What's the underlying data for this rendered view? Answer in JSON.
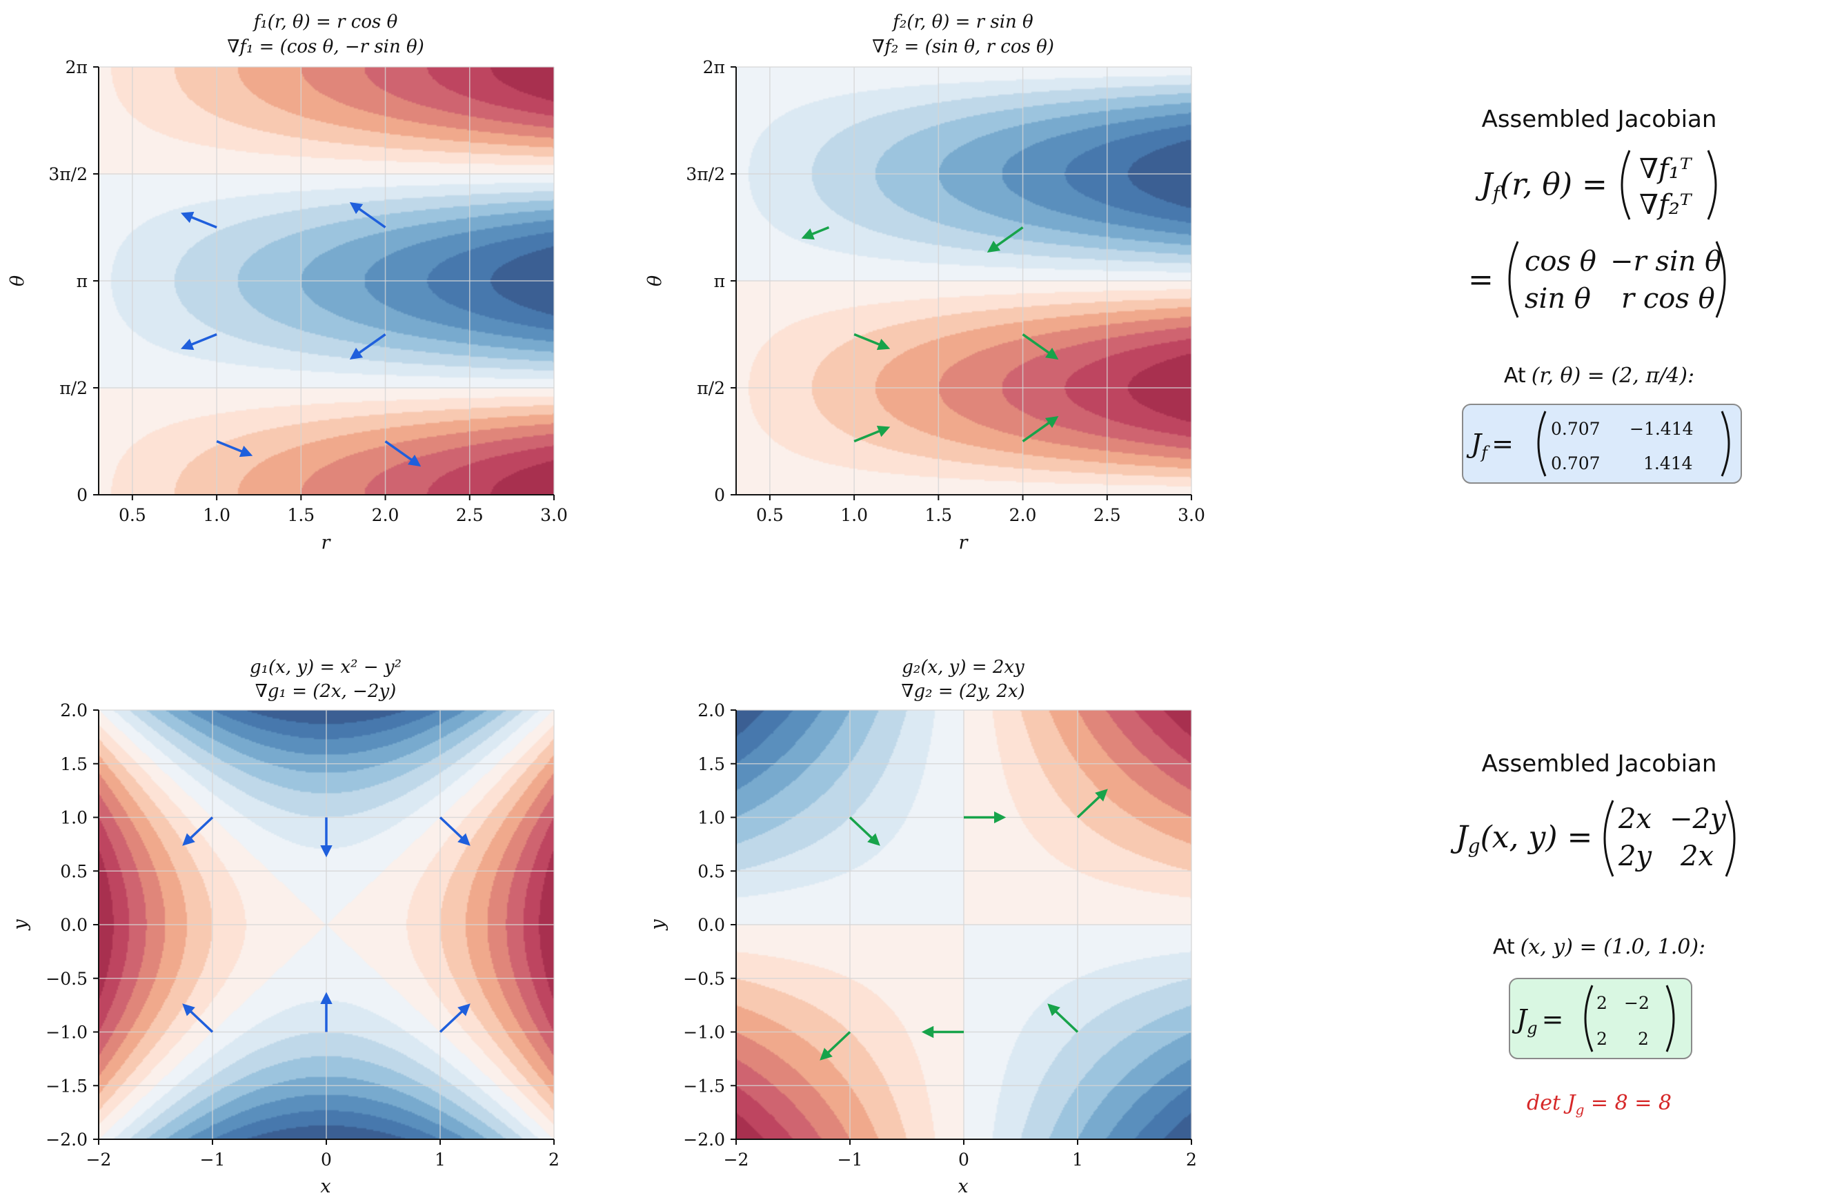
{
  "colors": {
    "positive_ramp": [
      "#fbf0eb",
      "#fde2d5",
      "#f8c9b1",
      "#f0a98c",
      "#e0867a",
      "#cf6470",
      "#be4560",
      "#a8304f"
    ],
    "negative_ramp": [
      "#eef3f8",
      "#dbe9f3",
      "#bfd8e9",
      "#9cc4de",
      "#78aace",
      "#5a8fbd",
      "#4778ad",
      "#3b5f93"
    ],
    "arrow_blue": "#1f5fdc",
    "arrow_green": "#17a34a",
    "grid": "#d5d5d5",
    "box_blue_fill": "#dbeafb",
    "box_green_fill": "#d9f7e2",
    "box_stroke": "#8a8a8a",
    "det_red": "#d62728"
  },
  "chart_data": [
    {
      "id": "f1",
      "type": "contour",
      "function": "r*cos(theta)",
      "title_line1": "f₁(r, θ) = r cos θ",
      "title_line2": "∇f₁ = (cos θ, −r sin θ)",
      "xlabel": "r",
      "ylabel": "θ",
      "xlim": [
        0.3,
        3.0
      ],
      "ylim": [
        0,
        6.2832
      ],
      "x_ticks": [
        0.5,
        1.0,
        1.5,
        2.0,
        2.5,
        3.0
      ],
      "x_tick_labels": [
        "0.5",
        "1.0",
        "1.5",
        "2.0",
        "2.5",
        "3.0"
      ],
      "y_ticks": [
        0,
        1.5708,
        3.1416,
        4.7124,
        6.2832
      ],
      "y_tick_labels": [
        "0",
        "π/2",
        "π",
        "3π/2",
        "2π"
      ],
      "levels": [
        -3,
        -2.625,
        -2.25,
        -1.875,
        -1.5,
        -1.125,
        -0.75,
        -0.375,
        0,
        0.375,
        0.75,
        1.125,
        1.5,
        1.875,
        2.25,
        2.625,
        3
      ],
      "arrow_color": "blue",
      "arrows": [
        {
          "x": 1.0,
          "y": 0.785,
          "dx": 0.2,
          "dy": -0.2
        },
        {
          "x": 2.0,
          "y": 0.785,
          "dx": 0.2,
          "dy": -0.35
        },
        {
          "x": 1.0,
          "y": 2.356,
          "dx": -0.2,
          "dy": -0.2
        },
        {
          "x": 2.0,
          "y": 2.356,
          "dx": -0.2,
          "dy": -0.35
        },
        {
          "x": 1.0,
          "y": 3.927,
          "dx": -0.2,
          "dy": 0.2
        },
        {
          "x": 2.0,
          "y": 3.927,
          "dx": -0.2,
          "dy": 0.35
        }
      ]
    },
    {
      "id": "f2",
      "type": "contour",
      "function": "r*sin(theta)",
      "title_line1": "f₂(r, θ) = r sin θ",
      "title_line2": "∇f₂ = (sin θ, r cos θ)",
      "xlabel": "r",
      "ylabel": "θ",
      "xlim": [
        0.3,
        3.0
      ],
      "ylim": [
        0,
        6.2832
      ],
      "x_ticks": [
        0.5,
        1.0,
        1.5,
        2.0,
        2.5,
        3.0
      ],
      "x_tick_labels": [
        "0.5",
        "1.0",
        "1.5",
        "2.0",
        "2.5",
        "3.0"
      ],
      "y_ticks": [
        0,
        1.5708,
        3.1416,
        4.7124,
        6.2832
      ],
      "y_tick_labels": [
        "0",
        "π/2",
        "π",
        "3π/2",
        "2π"
      ],
      "levels": [
        -3,
        -2.625,
        -2.25,
        -1.875,
        -1.5,
        -1.125,
        -0.75,
        -0.375,
        0,
        0.375,
        0.75,
        1.125,
        1.5,
        1.875,
        2.25,
        2.625,
        3
      ],
      "arrow_color": "green",
      "arrows": [
        {
          "x": 1.0,
          "y": 0.785,
          "dx": 0.2,
          "dy": 0.2
        },
        {
          "x": 2.0,
          "y": 0.785,
          "dx": 0.2,
          "dy": 0.35
        },
        {
          "x": 1.0,
          "y": 2.356,
          "dx": 0.2,
          "dy": -0.2
        },
        {
          "x": 2.0,
          "y": 2.356,
          "dx": 0.2,
          "dy": -0.35
        },
        {
          "x": 0.85,
          "y": 3.927,
          "dx": -0.15,
          "dy": -0.15
        },
        {
          "x": 2.0,
          "y": 3.927,
          "dx": -0.2,
          "dy": -0.35
        }
      ]
    },
    {
      "id": "g1",
      "type": "contour",
      "function": "x*x - y*y",
      "title_line1": "g₁(x, y) = x² − y²",
      "title_line2": "∇g₁ = (2x, −2y)",
      "xlabel": "x",
      "ylabel": "y",
      "xlim": [
        -2,
        2
      ],
      "ylim": [
        -2,
        2
      ],
      "x_ticks": [
        -2,
        -1,
        0,
        1,
        2
      ],
      "x_tick_labels": [
        "−2",
        "−1",
        "0",
        "1",
        "2"
      ],
      "y_ticks": [
        -2,
        -1.5,
        -1,
        -0.5,
        0,
        0.5,
        1,
        1.5,
        2
      ],
      "y_tick_labels": [
        "−2.0",
        "−1.5",
        "−1.0",
        "−0.5",
        "0.0",
        "0.5",
        "1.0",
        "1.5",
        "2.0"
      ],
      "levels": [
        -4,
        -3.5,
        -3,
        -2.5,
        -2,
        -1.5,
        -1,
        -0.5,
        0,
        0.5,
        1,
        1.5,
        2,
        2.5,
        3,
        3.5,
        4
      ],
      "arrow_color": "blue",
      "arrows": [
        {
          "x": -1,
          "y": 1,
          "dx": -0.25,
          "dy": -0.25
        },
        {
          "x": 0,
          "y": 1,
          "dx": 0,
          "dy": -0.35
        },
        {
          "x": 1,
          "y": 1,
          "dx": 0.25,
          "dy": -0.25
        },
        {
          "x": -1,
          "y": -1,
          "dx": -0.25,
          "dy": 0.25
        },
        {
          "x": 0,
          "y": -1,
          "dx": 0,
          "dy": 0.35
        },
        {
          "x": 1,
          "y": -1,
          "dx": 0.25,
          "dy": 0.25
        }
      ]
    },
    {
      "id": "g2",
      "type": "contour",
      "function": "2*x*y",
      "title_line1": "g₂(x, y) = 2xy",
      "title_line2": "∇g₂ = (2y, 2x)",
      "xlabel": "x",
      "ylabel": "y",
      "xlim": [
        -2,
        2
      ],
      "ylim": [
        -2,
        2
      ],
      "x_ticks": [
        -2,
        -1,
        0,
        1,
        2
      ],
      "x_tick_labels": [
        "−2",
        "−1",
        "0",
        "1",
        "2"
      ],
      "y_ticks": [
        -2,
        -1.5,
        -1,
        -0.5,
        0,
        0.5,
        1,
        1.5,
        2
      ],
      "y_tick_labels": [
        "−2.0",
        "−1.5",
        "−1.0",
        "−0.5",
        "0.0",
        "0.5",
        "1.0",
        "1.5",
        "2.0"
      ],
      "levels": [
        -8,
        -7,
        -6,
        -5,
        -4,
        -3,
        -2,
        -1,
        0,
        1,
        2,
        3,
        4,
        5,
        6,
        7,
        8
      ],
      "arrow_color": "green",
      "arrows": [
        {
          "x": -1,
          "y": 1,
          "dx": 0.25,
          "dy": -0.25
        },
        {
          "x": 0,
          "y": 1,
          "dx": 0.35,
          "dy": 0
        },
        {
          "x": 1,
          "y": 1,
          "dx": 0.25,
          "dy": 0.25
        },
        {
          "x": -1,
          "y": -1,
          "dx": -0.25,
          "dy": -0.25
        },
        {
          "x": 0,
          "y": -1,
          "dx": -0.35,
          "dy": 0
        },
        {
          "x": 1,
          "y": -1,
          "dx": -0.25,
          "dy": 0.25
        }
      ]
    }
  ],
  "jacobian_f": {
    "heading": "Assembled Jacobian",
    "lhs": "J",
    "lhs_sub": "f",
    "lhs_args": "(r, θ) =",
    "row1": "∇f₁ᵀ",
    "row2": "∇f₂ᵀ",
    "eq": "=",
    "m11": "cos θ",
    "m12": "−r sin θ",
    "m21": "sin θ",
    "m22": "r cos θ",
    "at_label": "At",
    "at_value": "(r, θ) = (2, π/4):",
    "eval_lhs": "J",
    "eval_sub": "f",
    "eval_eq": "=",
    "e11": "0.707",
    "e12": "−1.414",
    "e21": "0.707",
    "e22": "1.414"
  },
  "jacobian_g": {
    "heading": "Assembled Jacobian",
    "lhs": "J",
    "lhs_sub": "g",
    "lhs_args": "(x, y) =",
    "m11": "2x",
    "m12": "−2y",
    "m21": "2y",
    "m22": "2x",
    "at_label": "At",
    "at_value": "(x, y) = (1.0, 1.0):",
    "eval_lhs": "J",
    "eval_sub": "g",
    "eval_eq": "=",
    "e11": "2",
    "e12": "−2",
    "e21": "2",
    "e22": "2",
    "det_text": "det J",
    "det_sub": "g",
    "det_value": " = 8 = 8"
  }
}
